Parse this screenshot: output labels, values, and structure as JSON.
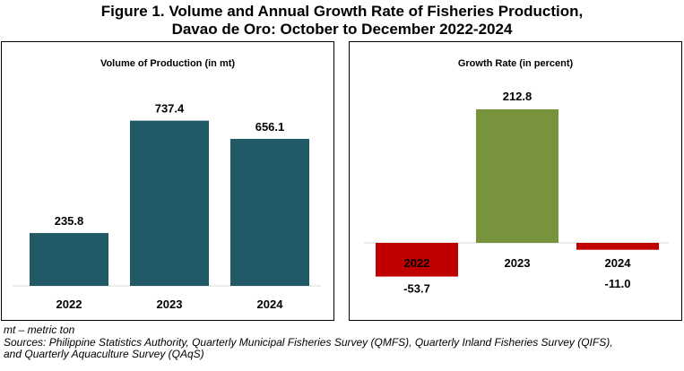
{
  "figure": {
    "title_line1": "Figure 1. Volume and Annual Growth Rate of Fisheries Production,",
    "title_line2": "Davao de Oro: October to December 2022-2024"
  },
  "chart_data": [
    {
      "type": "bar",
      "title": "Volume of Production (in mt)",
      "categories": [
        "2022",
        "2023",
        "2024"
      ],
      "values": [
        235.8,
        737.4,
        656.1
      ],
      "value_labels": [
        "235.8",
        "737.4",
        "656.1"
      ],
      "ylim": [
        0,
        800
      ],
      "color": "#215967",
      "grid": false
    },
    {
      "type": "bar",
      "title": "Growth Rate (in percent)",
      "categories": [
        "2022",
        "2023",
        "2024"
      ],
      "values": [
        -53.7,
        212.8,
        -11.0
      ],
      "value_labels": [
        "-53.7",
        "212.8",
        "-11.0"
      ],
      "ylim": [
        -80,
        250
      ],
      "colors": [
        "#c00000",
        "#77933c",
        "#c00000"
      ],
      "grid": false
    }
  ],
  "footer": {
    "note": "mt – metric ton",
    "sources_line1": "Sources: Philippine Statistics Authority, Quarterly Municipal Fisheries Survey (QMFS), Quarterly Inland Fisheries Survey (QIFS),",
    "sources_line2": "and Quarterly Aquaculture Survey (QAqS)"
  }
}
